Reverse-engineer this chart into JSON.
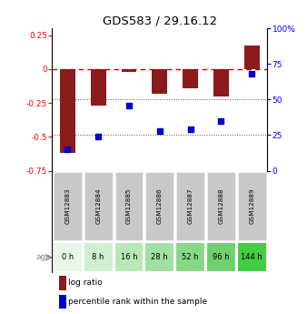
{
  "title": "GDS583 / 29.16.12",
  "samples": [
    "GSM12883",
    "GSM12884",
    "GSM12885",
    "GSM12886",
    "GSM12887",
    "GSM12888",
    "GSM12889"
  ],
  "ages": [
    "0 h",
    "8 h",
    "16 h",
    "28 h",
    "52 h",
    "96 h",
    "144 h"
  ],
  "log_ratios": [
    -0.62,
    -0.27,
    -0.02,
    -0.18,
    -0.14,
    -0.2,
    0.17
  ],
  "percentile_ranks": [
    15,
    24,
    46,
    28,
    29,
    35,
    68
  ],
  "bar_color": "#8B1A1A",
  "dot_color": "#0000CC",
  "left_ylim": [
    -0.75,
    0.3
  ],
  "right_ylim": [
    0,
    100
  ],
  "left_yticks": [
    0.25,
    0.0,
    -0.25,
    -0.5,
    -0.75
  ],
  "right_yticks": [
    100,
    75,
    50,
    25,
    0
  ],
  "left_ytick_labels": [
    "0.25",
    "0",
    "-0.25",
    "-0.5",
    "-0.75"
  ],
  "right_ytick_labels": [
    "100%",
    "75",
    "50",
    "25",
    "0"
  ],
  "age_colors": [
    "#e8f8e8",
    "#d0f0d0",
    "#b8e8b8",
    "#a0e0a0",
    "#88d888",
    "#70d070",
    "#44cc44"
  ],
  "sample_bg_color": "#c8c8c8",
  "hline_zero_color": "#CC0000",
  "hline_dotted_color": "#555555",
  "legend_log_ratio": "log ratio",
  "legend_percentile": "percentile rank within the sample"
}
